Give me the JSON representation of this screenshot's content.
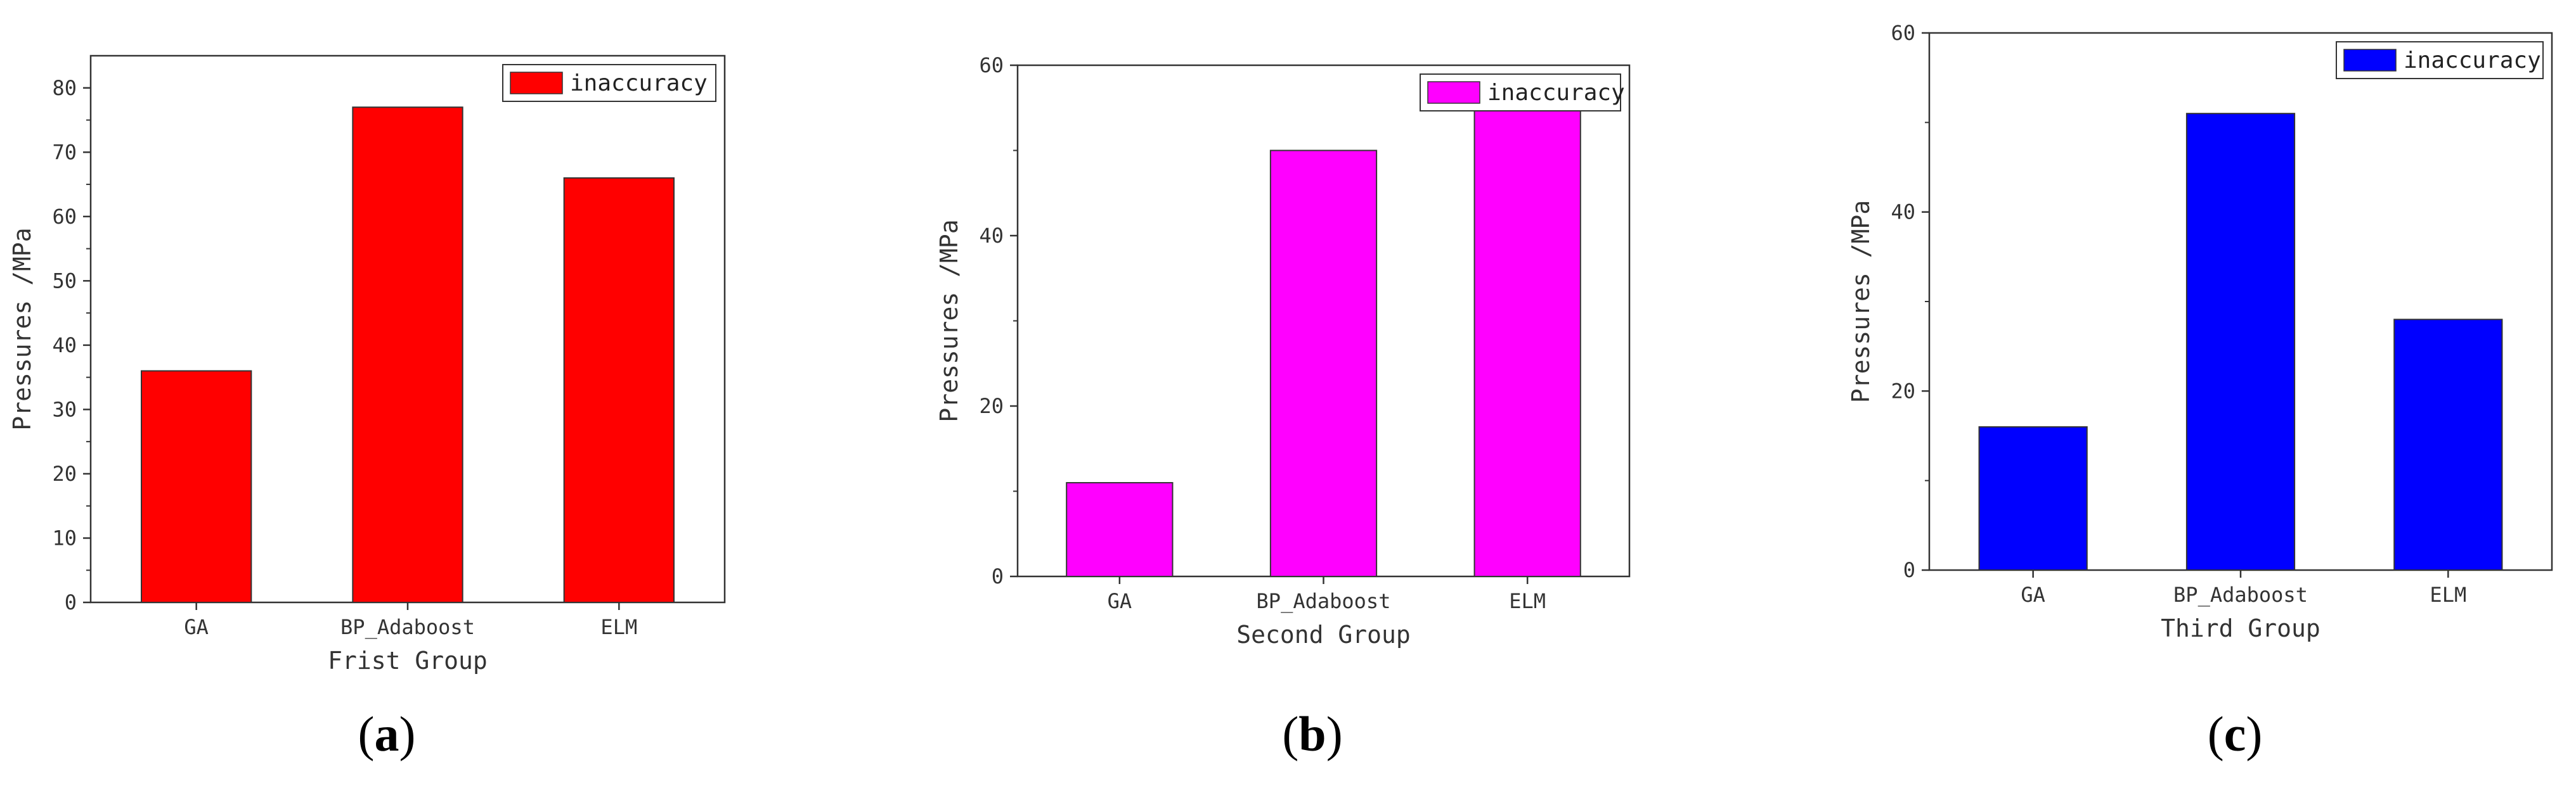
{
  "chart_data": [
    {
      "type": "bar",
      "panel_label": "a",
      "categories": [
        "GA",
        "BP_Adaboost",
        "ELM"
      ],
      "series": [
        {
          "name": "inaccuracy",
          "values": [
            36,
            77,
            66
          ]
        }
      ],
      "xlabel": "Frist Group",
      "ylabel": "Pressures /MPa",
      "ylim": [
        0,
        85
      ],
      "yticks": [
        0,
        10,
        20,
        30,
        40,
        50,
        60,
        70,
        80
      ],
      "color": "#ff0000",
      "legend": "top-right",
      "grid": false
    },
    {
      "type": "bar",
      "panel_label": "b",
      "categories": [
        "GA",
        "BP_Adaboost",
        "ELM"
      ],
      "series": [
        {
          "name": "inaccuracy",
          "values": [
            11,
            50,
            55
          ]
        }
      ],
      "xlabel": "Second Group",
      "ylabel": "Pressures /MPa",
      "ylim": [
        0,
        60
      ],
      "yticks": [
        0,
        20,
        40,
        60
      ],
      "color": "#ff00ff",
      "legend": "top-right",
      "grid": false
    },
    {
      "type": "bar",
      "panel_label": "c",
      "categories": [
        "GA",
        "BP_Adaboost",
        "ELM"
      ],
      "series": [
        {
          "name": "inaccuracy",
          "values": [
            16,
            51,
            28
          ]
        }
      ],
      "xlabel": "Third Group",
      "ylabel": "Pressures /MPa",
      "ylim": [
        0,
        60
      ],
      "yticks": [
        0,
        20,
        40,
        60
      ],
      "color": "#0000ff",
      "legend": "top-right",
      "grid": false
    }
  ]
}
